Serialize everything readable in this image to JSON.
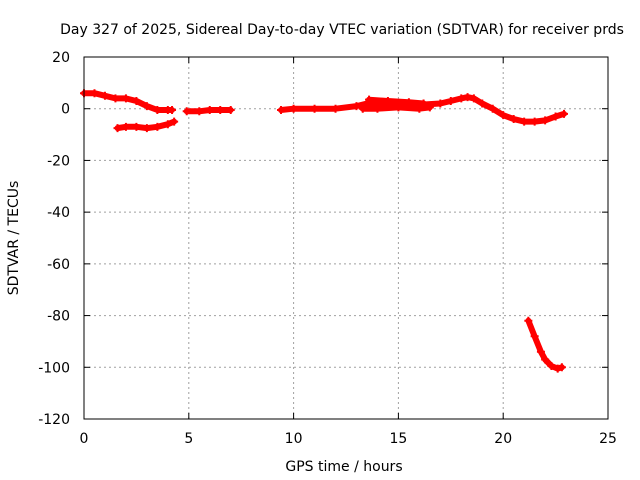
{
  "chart_data": {
    "type": "scatter",
    "title": "Day 327 of 2025, Sidereal Day-to-day VTEC variation (SDTVAR) for receiver prds",
    "xlabel": "GPS time / hours",
    "ylabel": "SDTVAR / TECUs",
    "xlim": [
      0,
      25
    ],
    "ylim": [
      -120,
      20
    ],
    "xticks": [
      0,
      5,
      10,
      15,
      20,
      25
    ],
    "yticks": [
      20,
      0,
      -20,
      -40,
      -60,
      -80,
      -100,
      -120
    ],
    "grid": true,
    "colors": {
      "series": "#ff0000",
      "grid": "#a0a0a0",
      "axes": "#000000"
    },
    "series": [
      {
        "name": "SDTVAR",
        "segments": [
          {
            "x": [
              0.0,
              0.5,
              1.0,
              1.5,
              2.0,
              2.5,
              3.0,
              3.5,
              4.0,
              4.2
            ],
            "y": [
              6.0,
              6.0,
              5.0,
              4.0,
              4.0,
              3.0,
              1.0,
              -0.5,
              -0.5,
              -0.5
            ]
          },
          {
            "x": [
              1.6,
              2.0,
              2.5,
              3.0,
              3.5,
              4.0,
              4.3
            ],
            "y": [
              -7.5,
              -7.0,
              -7.0,
              -7.5,
              -7.0,
              -6.0,
              -5.0
            ]
          },
          {
            "x": [
              4.9,
              5.5,
              6.0,
              6.5,
              7.0
            ],
            "y": [
              -1.0,
              -1.0,
              -0.5,
              -0.5,
              -0.5
            ]
          },
          {
            "x": [
              9.4,
              10.0,
              11.0,
              12.0,
              13.0,
              13.5,
              14.0,
              15.0,
              16.0,
              17.0,
              17.5,
              18.0,
              18.3,
              18.6,
              19.0,
              19.5,
              20.0,
              20.5,
              21.0,
              21.5,
              22.0,
              22.5,
              22.9
            ],
            "y": [
              -0.5,
              0.0,
              0.0,
              0.0,
              1.0,
              2.0,
              2.0,
              2.0,
              1.5,
              2.0,
              3.0,
              4.0,
              4.5,
              4.0,
              2.0,
              0.0,
              -2.5,
              -4.0,
              -5.0,
              -5.0,
              -4.5,
              -3.0,
              -2.0
            ]
          },
          {
            "x": [
              13.3,
              14.0,
              15.0,
              16.0,
              16.5
            ],
            "y": [
              0.0,
              0.0,
              0.5,
              0.0,
              0.5
            ]
          },
          {
            "x": [
              13.6,
              14.5,
              15.5,
              16.2
            ],
            "y": [
              3.5,
              3.0,
              2.5,
              2.0
            ]
          },
          {
            "x": [
              21.2,
              21.5,
              21.8,
              22.0,
              22.3,
              22.6,
              22.8
            ],
            "y": [
              -82.0,
              -88.0,
              -94.0,
              -97.0,
              -99.5,
              -100.5,
              -100.0
            ]
          }
        ]
      }
    ]
  }
}
